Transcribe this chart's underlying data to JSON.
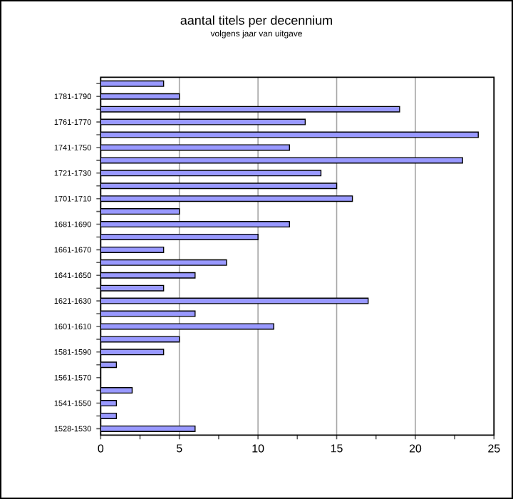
{
  "chart_data": {
    "type": "bar",
    "orientation": "horizontal",
    "title": "aantal titels per decennium",
    "subtitle": "volgens jaar van uitgave",
    "categories": [
      null,
      "1781-1790",
      null,
      "1761-1770",
      null,
      "1741-1750",
      null,
      "1721-1730",
      null,
      "1701-1710",
      null,
      "1681-1690",
      null,
      "1661-1670",
      null,
      "1641-1650",
      null,
      "1621-1630",
      null,
      "1601-1610",
      null,
      "1581-1590",
      null,
      "1561-1570",
      null,
      "1541-1550",
      null,
      "1528-1530"
    ],
    "values": [
      4,
      5,
      19,
      13,
      24,
      12,
      23,
      14,
      15,
      16,
      5,
      12,
      10,
      4,
      8,
      6,
      4,
      17,
      6,
      11,
      5,
      4,
      1,
      null,
      2,
      1,
      1,
      6
    ],
    "color": "#9999ff",
    "xlim": [
      0,
      25
    ],
    "xticks": [
      0,
      {
        "value": 2.5,
        "label": null
      },
      5,
      {
        "value": 7.5,
        "label": null
      },
      10,
      {
        "value": 12.5,
        "label": null
      },
      15,
      {
        "value": 17.5,
        "label": null
      },
      20,
      {
        "value": 22.5,
        "label": null
      },
      25
    ],
    "grid": "x"
  }
}
